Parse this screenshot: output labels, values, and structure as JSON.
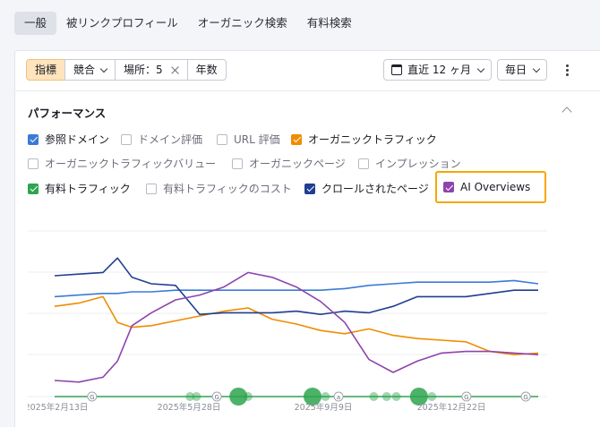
{
  "tabs": [
    "一般",
    "被リンクプロフィール",
    "オーガニック検索",
    "有料検索"
  ],
  "toolbar": {
    "metrics_label": "指標",
    "competitors_label": "競合",
    "location_label": "場所：5",
    "years_label": "年数",
    "date_range_label": "直近 12 ヶ月",
    "interval_label": "毎日"
  },
  "section": {
    "title": "パフォーマンス"
  },
  "metrics": [
    {
      "label": "参照ドメイン",
      "checked": true,
      "color": "#3a7bd5"
    },
    {
      "label": "ドメイン評価",
      "checked": false
    },
    {
      "label": "URL 評価",
      "checked": false
    },
    {
      "label": "オーガニックトラフィック",
      "checked": true,
      "color": "#f08c00"
    },
    {
      "label": "オーガニックトラフィックバリュー",
      "checked": false
    },
    {
      "label": "オーガニックページ",
      "checked": false
    },
    {
      "label": "インプレッション",
      "checked": false
    },
    {
      "label": "有料トラフィック",
      "checked": true,
      "color": "#2da44e"
    },
    {
      "label": "有料トラフィックのコスト",
      "checked": false
    },
    {
      "label": "クロールされたページ",
      "checked": true,
      "color": "#1f3f8f"
    },
    {
      "label": "AI Overviews",
      "checked": true,
      "color": "#8e44ad"
    }
  ],
  "chart_data": {
    "type": "line",
    "x_ticks": [
      "2025年2月13日",
      "2025年5月28日",
      "2025年9月9日",
      "2025年12月22日"
    ],
    "y_scale": "relative (no printed y-axis)",
    "x": [
      0,
      5,
      10,
      13,
      16,
      20,
      25,
      30,
      35,
      40,
      45,
      50,
      55,
      60,
      65,
      70,
      75,
      80,
      85,
      90,
      95,
      100
    ],
    "series": [
      {
        "name": "参照ドメイン",
        "color": "#3a7bd5",
        "values": [
          62,
          63,
          64,
          64,
          65,
          65,
          66,
          66,
          66,
          66,
          66,
          66,
          66,
          67,
          69,
          70,
          71,
          71,
          71,
          71,
          72,
          70
        ]
      },
      {
        "name": "オーガニックトラフィック",
        "color": "#f08c00",
        "values": [
          56,
          58,
          62,
          46,
          43,
          44,
          47,
          50,
          53,
          55,
          48,
          45,
          41,
          39,
          42,
          38,
          36,
          35,
          34,
          28,
          26,
          27
        ]
      },
      {
        "name": "クロールされたページ",
        "color": "#1f3f8f",
        "values": [
          75,
          76,
          77,
          86,
          74,
          70,
          69,
          51,
          52,
          52,
          52,
          53,
          51,
          53,
          52,
          56,
          62,
          62,
          62,
          64,
          66,
          66
        ]
      },
      {
        "name": "AI Overviews",
        "color": "#8e44ad",
        "values": [
          10,
          9,
          12,
          22,
          44,
          52,
          60,
          63,
          68,
          77,
          74,
          68,
          59,
          46,
          23,
          15,
          22,
          27,
          28,
          28,
          27,
          26
        ]
      },
      {
        "name": "有料トラフィック",
        "color": "#2da44e",
        "values": [
          0,
          0,
          0,
          0,
          0,
          0,
          0,
          0,
          0,
          0,
          0,
          0,
          0,
          0,
          0,
          0,
          0,
          0,
          0,
          0,
          0,
          0
        ]
      }
    ],
    "markers": [
      {
        "x": 12,
        "label": "G"
      },
      {
        "x": 52,
        "label": "G"
      },
      {
        "x": 91,
        "label": "a"
      },
      {
        "x": 132,
        "label": "G"
      },
      {
        "x": 151,
        "label": "G"
      }
    ],
    "bubbles": [
      {
        "x": 42,
        "size": 1
      },
      {
        "x": 44,
        "size": 1
      },
      {
        "x": 57,
        "size": 4
      },
      {
        "x": 60,
        "size": 1
      },
      {
        "x": 80,
        "size": 4
      },
      {
        "x": 84,
        "size": 1
      },
      {
        "x": 88,
        "size": 1
      },
      {
        "x": 99,
        "size": 1
      },
      {
        "x": 103,
        "size": 1
      },
      {
        "x": 106,
        "size": 1
      },
      {
        "x": 113,
        "size": 4
      },
      {
        "x": 117,
        "size": 1
      }
    ]
  }
}
